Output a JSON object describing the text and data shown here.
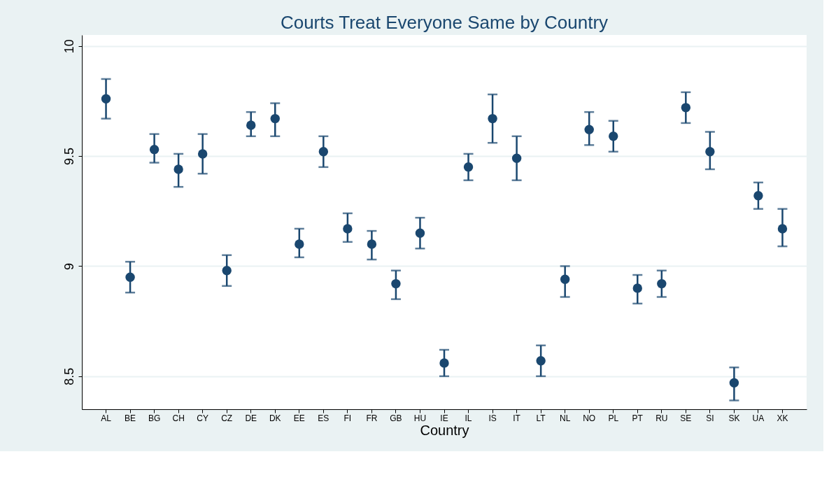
{
  "chart_data": {
    "type": "scatter",
    "title": "Courts Treat Everyone Same by Country",
    "xlabel": "Country",
    "categories": [
      "AL",
      "BE",
      "BG",
      "CH",
      "CY",
      "CZ",
      "DE",
      "DK",
      "EE",
      "ES",
      "FI",
      "FR",
      "GB",
      "HU",
      "IE",
      "IL",
      "IS",
      "IT",
      "LT",
      "NL",
      "NO",
      "PL",
      "PT",
      "RU",
      "SE",
      "SI",
      "SK",
      "UA",
      "XK"
    ],
    "series": [
      {
        "color": "#1a476f",
        "values": [
          9.76,
          8.95,
          9.53,
          9.44,
          9.51,
          8.98,
          9.64,
          9.67,
          9.1,
          9.52,
          9.17,
          9.1,
          8.92,
          9.15,
          8.56,
          9.45,
          9.67,
          9.49,
          8.57,
          8.94,
          9.62,
          9.59,
          8.9,
          8.92,
          9.72,
          9.52,
          8.47,
          9.32,
          9.17
        ],
        "errors": [
          [
            9.67,
            9.85
          ],
          [
            8.88,
            9.02
          ],
          [
            9.47,
            9.6
          ],
          [
            9.36,
            9.51
          ],
          [
            9.42,
            9.6
          ],
          [
            8.91,
            9.05
          ],
          [
            9.59,
            9.7
          ],
          [
            9.59,
            9.74
          ],
          [
            9.04,
            9.17
          ],
          [
            9.45,
            9.59
          ],
          [
            9.11,
            9.24
          ],
          [
            9.03,
            9.16
          ],
          [
            8.85,
            8.98
          ],
          [
            9.08,
            9.22
          ],
          [
            8.5,
            8.62
          ],
          [
            9.39,
            9.51
          ],
          [
            9.56,
            9.78
          ],
          [
            9.39,
            9.59
          ],
          [
            8.5,
            8.64
          ],
          [
            8.86,
            9.0
          ],
          [
            9.55,
            9.7
          ],
          [
            9.52,
            9.66
          ],
          [
            8.83,
            8.96
          ],
          [
            8.86,
            8.98
          ],
          [
            9.65,
            9.79
          ],
          [
            9.44,
            9.61
          ],
          [
            8.39,
            8.54
          ],
          [
            9.26,
            9.38
          ],
          [
            9.09,
            9.26
          ]
        ]
      }
    ],
    "ylim": [
      8.35,
      10.05
    ],
    "yticks": [
      8.5,
      9,
      9.5,
      10
    ],
    "grid": "y",
    "marker": "circle"
  }
}
